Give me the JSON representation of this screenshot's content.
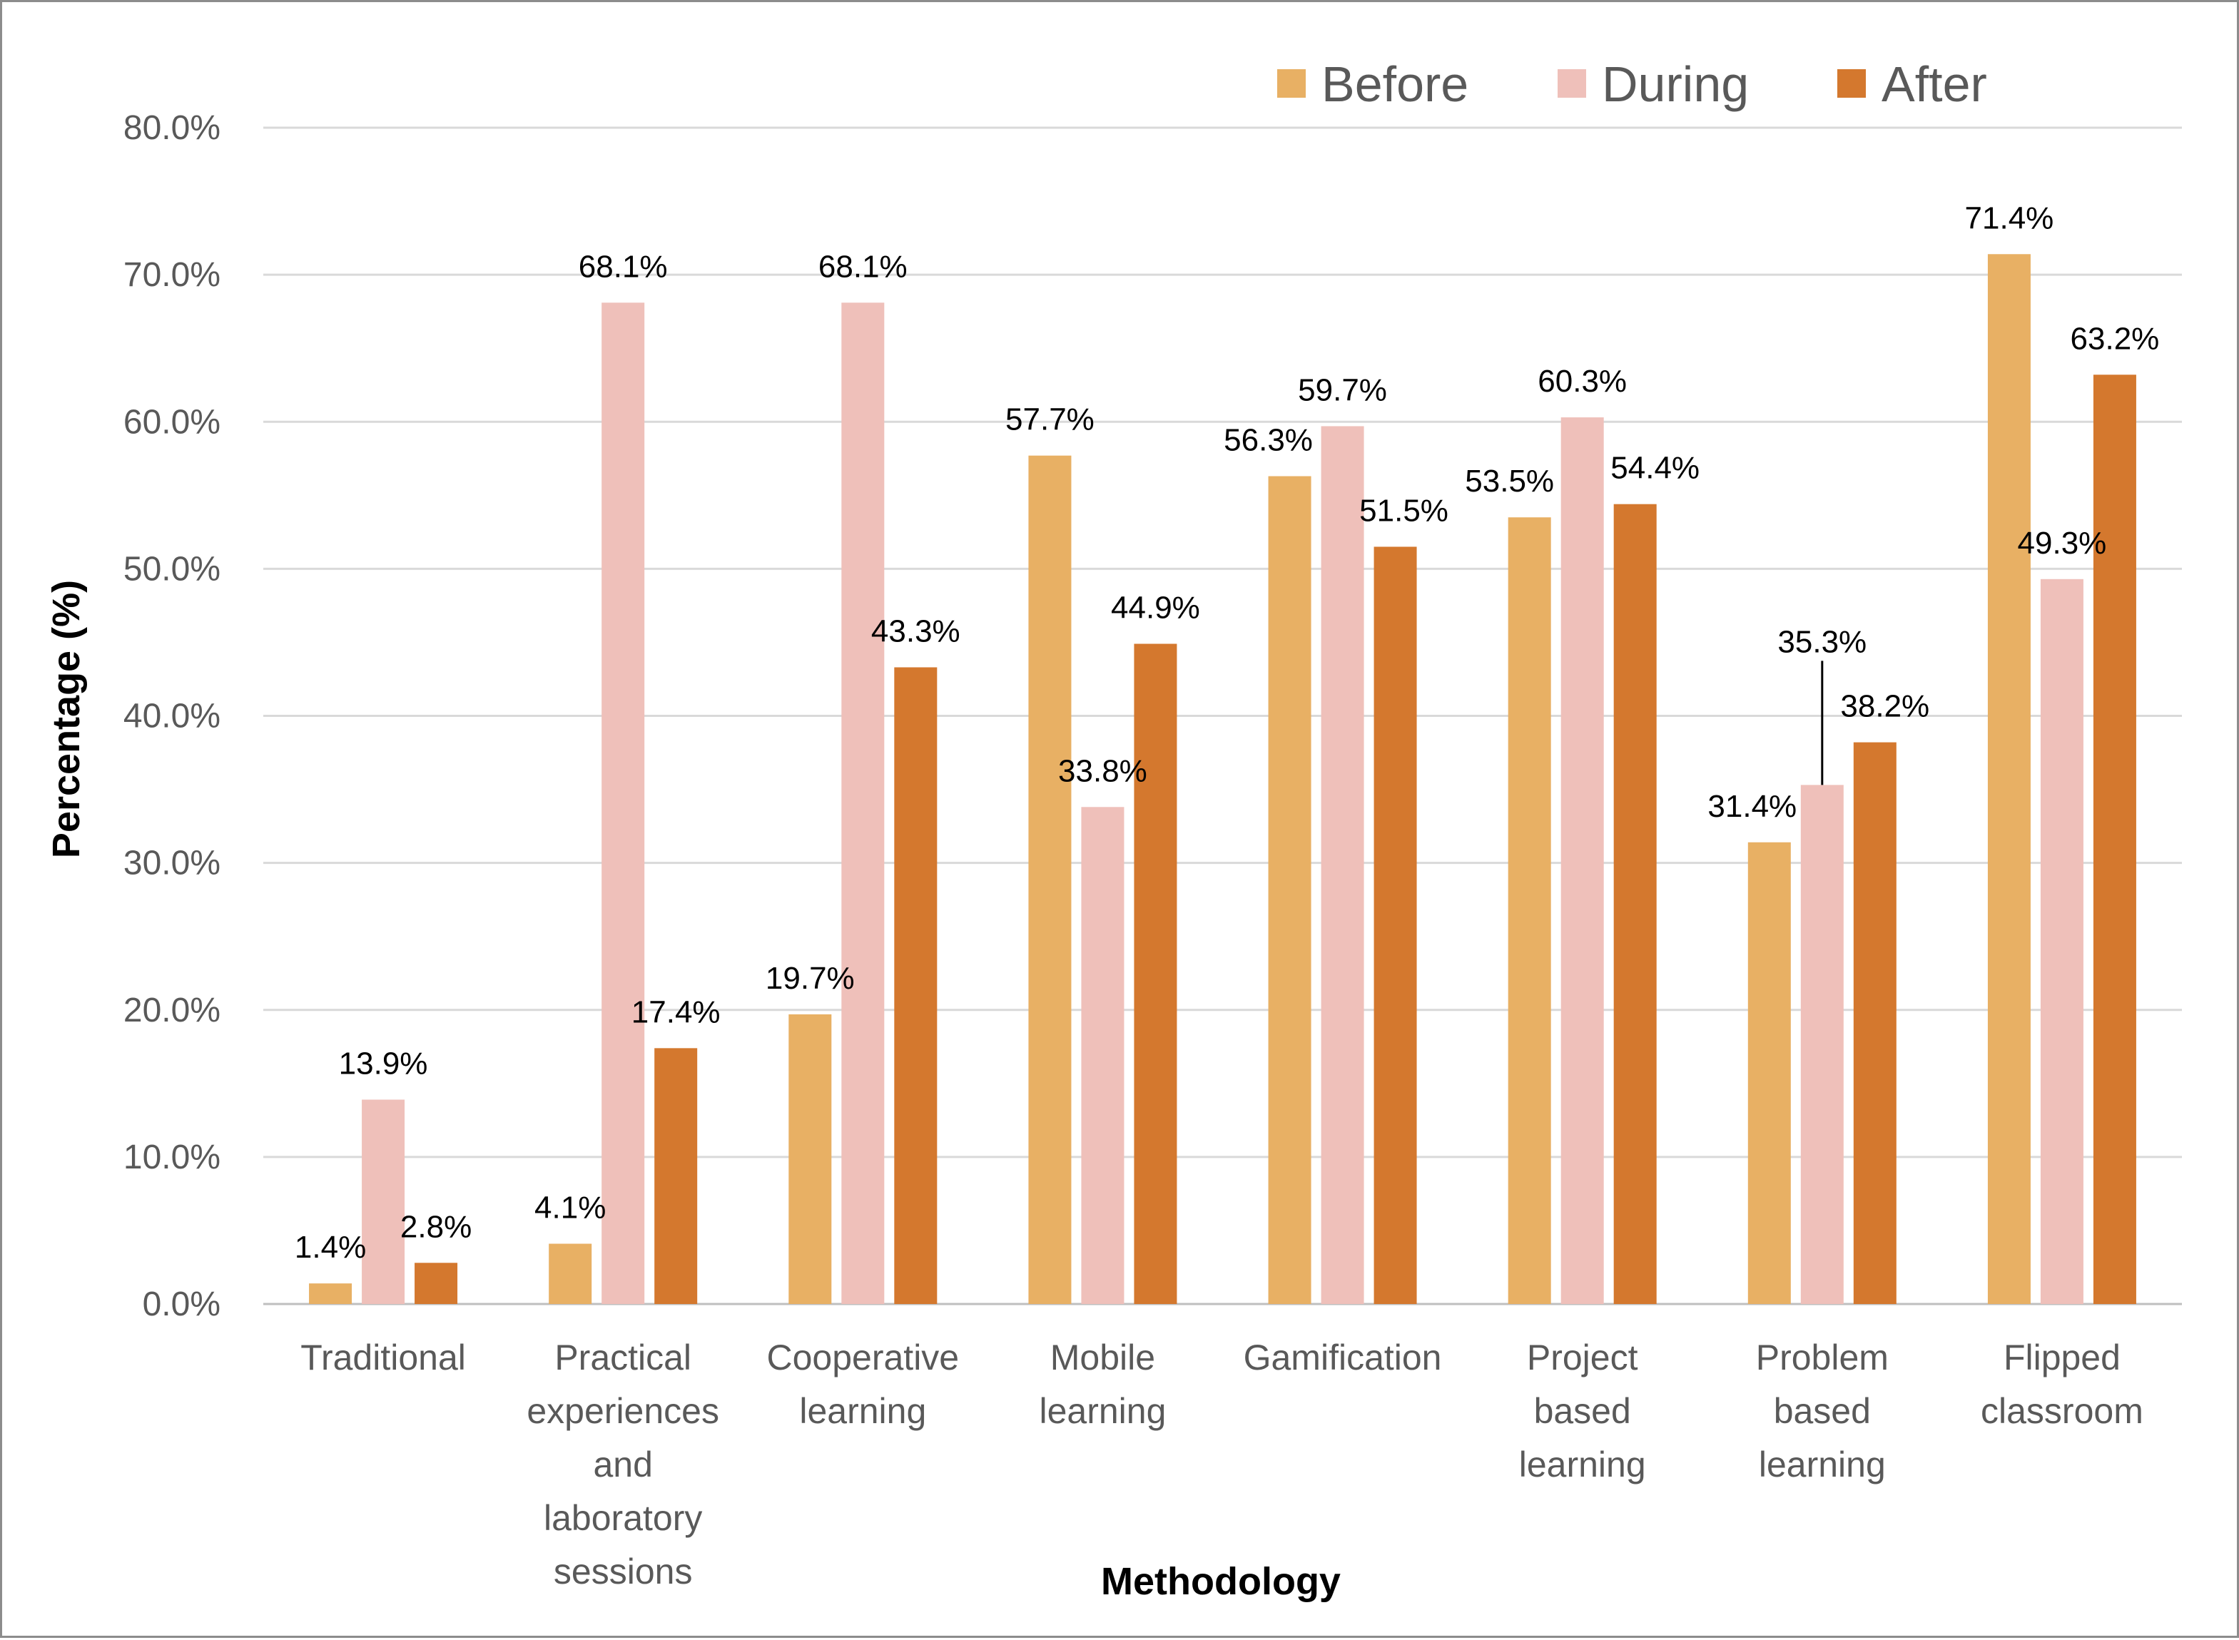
{
  "chart_data": {
    "type": "bar",
    "title": "",
    "xlabel": "Methodology",
    "ylabel": "Percentage (%)",
    "ylim": [
      0,
      80
    ],
    "ytick_step": 10,
    "ytick_labels": [
      "0.0%",
      "10.0%",
      "20.0%",
      "30.0%",
      "40.0%",
      "50.0%",
      "60.0%",
      "70.0%",
      "80.0%"
    ],
    "grid": true,
    "legend_position": "top-right",
    "categories": [
      [
        "Traditional"
      ],
      [
        "Practical",
        "experiences",
        "and",
        "laboratory",
        "sessions"
      ],
      [
        "Cooperative",
        "learning"
      ],
      [
        "Mobile",
        "learning"
      ],
      [
        "Gamification"
      ],
      [
        "Project",
        "based",
        "learning"
      ],
      [
        "Problem",
        "based",
        "learning"
      ],
      [
        "Flipped",
        "classroom"
      ]
    ],
    "series": [
      {
        "name": "Before",
        "color": "#E8B064",
        "values": [
          1.4,
          4.1,
          19.7,
          57.7,
          56.3,
          53.5,
          31.4,
          71.4
        ],
        "labels": [
          "1.4%",
          "4.1%",
          "19.7%",
          "57.7%",
          "56.3%",
          "53.5%",
          "31.4%",
          "71.4%"
        ]
      },
      {
        "name": "During",
        "color": "#EFC0BA",
        "values": [
          13.9,
          68.1,
          68.1,
          33.8,
          59.7,
          60.3,
          35.3,
          49.3
        ],
        "labels": [
          "13.9%",
          "68.1%",
          "68.1%",
          "33.8%",
          "59.7%",
          "60.3%",
          "35.3%",
          "49.3%"
        ]
      },
      {
        "name": "After",
        "color": "#D4782E",
        "values": [
          2.8,
          17.4,
          43.3,
          44.9,
          51.5,
          54.4,
          38.2,
          63.2
        ],
        "labels": [
          "2.8%",
          "17.4%",
          "43.3%",
          "44.9%",
          "51.5%",
          "54.4%",
          "38.2%",
          "63.2%"
        ]
      }
    ]
  }
}
